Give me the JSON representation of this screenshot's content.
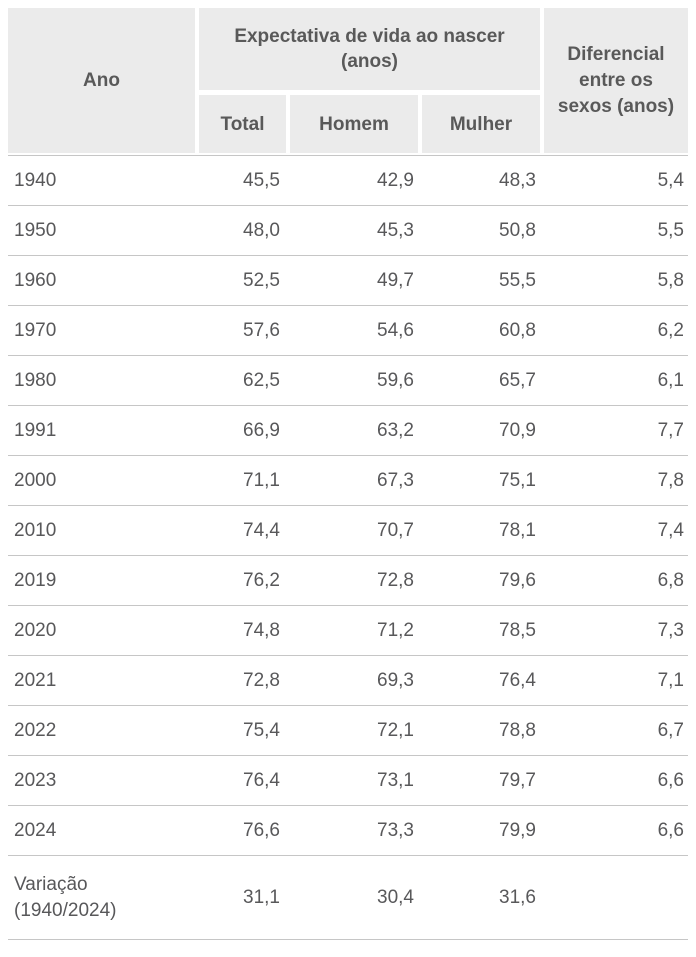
{
  "table": {
    "header": {
      "col_ano": "Ano",
      "group": "Expectativa de vida ao nascer (anos)",
      "sub_total": "Total",
      "sub_homem": "Homem",
      "sub_mulher": "Mulher",
      "col_diferencial": "Diferencial entre os sexos (anos)"
    },
    "rows": [
      {
        "ano": "1940",
        "total": "45,5",
        "homem": "42,9",
        "mulher": "48,3",
        "dif": "5,4"
      },
      {
        "ano": "1950",
        "total": "48,0",
        "homem": "45,3",
        "mulher": "50,8",
        "dif": "5,5"
      },
      {
        "ano": "1960",
        "total": "52,5",
        "homem": "49,7",
        "mulher": "55,5",
        "dif": "5,8"
      },
      {
        "ano": "1970",
        "total": "57,6",
        "homem": "54,6",
        "mulher": "60,8",
        "dif": "6,2"
      },
      {
        "ano": "1980",
        "total": "62,5",
        "homem": "59,6",
        "mulher": "65,7",
        "dif": "6,1"
      },
      {
        "ano": "1991",
        "total": "66,9",
        "homem": "63,2",
        "mulher": "70,9",
        "dif": "7,7"
      },
      {
        "ano": "2000",
        "total": "71,1",
        "homem": "67,3",
        "mulher": "75,1",
        "dif": "7,8"
      },
      {
        "ano": "2010",
        "total": "74,4",
        "homem": "70,7",
        "mulher": "78,1",
        "dif": "7,4"
      },
      {
        "ano": "2019",
        "total": "76,2",
        "homem": "72,8",
        "mulher": "79,6",
        "dif": "6,8"
      },
      {
        "ano": "2020",
        "total": "74,8",
        "homem": "71,2",
        "mulher": "78,5",
        "dif": "7,3"
      },
      {
        "ano": "2021",
        "total": "72,8",
        "homem": "69,3",
        "mulher": "76,4",
        "dif": "7,1"
      },
      {
        "ano": "2022",
        "total": "75,4",
        "homem": "72,1",
        "mulher": "78,8",
        "dif": "6,7"
      },
      {
        "ano": "2023",
        "total": "76,4",
        "homem": "73,1",
        "mulher": "79,7",
        "dif": "6,6"
      },
      {
        "ano": "2024",
        "total": "76,6",
        "homem": "73,3",
        "mulher": "79,9",
        "dif": "6,6"
      },
      {
        "ano": "Variação (1940/2024)",
        "total": "31,1",
        "homem": "30,4",
        "mulher": "31,6",
        "dif": "",
        "tall": true
      }
    ]
  },
  "colors": {
    "header_bg": "#ebebeb",
    "header_text": "#595959",
    "body_text": "#58585a",
    "separator": "#c6c6c6",
    "background": "#ffffff"
  },
  "chart_data": {
    "type": "table",
    "title": "Expectativa de vida ao nascer (anos)",
    "columns": [
      "Ano",
      "Total",
      "Homem",
      "Mulher",
      "Diferencial entre os sexos (anos)"
    ],
    "rows": [
      [
        "1940",
        45.5,
        42.9,
        48.3,
        5.4
      ],
      [
        "1950",
        48.0,
        45.3,
        50.8,
        5.5
      ],
      [
        "1960",
        52.5,
        49.7,
        55.5,
        5.8
      ],
      [
        "1970",
        57.6,
        54.6,
        60.8,
        6.2
      ],
      [
        "1980",
        62.5,
        59.6,
        65.7,
        6.1
      ],
      [
        "1991",
        66.9,
        63.2,
        70.9,
        7.7
      ],
      [
        "2000",
        71.1,
        67.3,
        75.1,
        7.8
      ],
      [
        "2010",
        74.4,
        70.7,
        78.1,
        7.4
      ],
      [
        "2019",
        76.2,
        72.8,
        79.6,
        6.8
      ],
      [
        "2020",
        74.8,
        71.2,
        78.5,
        7.3
      ],
      [
        "2021",
        72.8,
        69.3,
        76.4,
        7.1
      ],
      [
        "2022",
        75.4,
        72.1,
        78.8,
        6.7
      ],
      [
        "2023",
        76.4,
        73.1,
        79.7,
        6.6
      ],
      [
        "2024",
        76.6,
        73.3,
        79.9,
        6.6
      ],
      [
        "Variação (1940/2024)",
        31.1,
        30.4,
        31.6,
        null
      ]
    ],
    "layout": {
      "header_grouping": "Total/Homem/Mulher nested under 'Expectativa de vida ao nascer (anos)'",
      "numeric_alignment": "right",
      "decimal_separator": ","
    }
  }
}
